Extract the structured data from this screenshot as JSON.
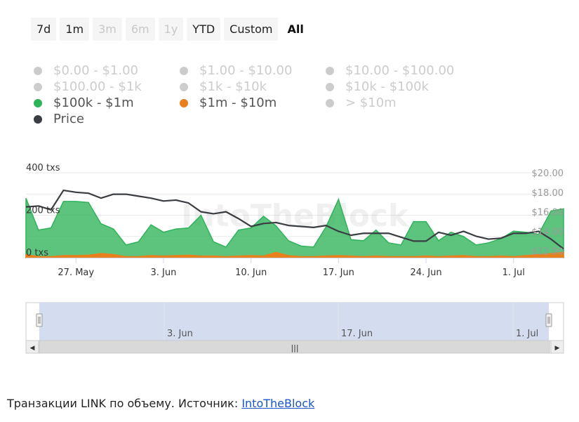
{
  "range_buttons": [
    {
      "label": "7d",
      "state": "enabled"
    },
    {
      "label": "1m",
      "state": "enabled"
    },
    {
      "label": "3m",
      "state": "disabled"
    },
    {
      "label": "6m",
      "state": "disabled"
    },
    {
      "label": "1y",
      "state": "disabled"
    },
    {
      "label": "YTD",
      "state": "enabled"
    },
    {
      "label": "Custom",
      "state": "enabled"
    },
    {
      "label": "All",
      "state": "active"
    }
  ],
  "legend": [
    {
      "label": "$0.00 - $1.00",
      "color": "#cccccc",
      "visible": false
    },
    {
      "label": "$1.00 - $10.00",
      "color": "#cccccc",
      "visible": false
    },
    {
      "label": "$10.00 - $100.00",
      "color": "#cccccc",
      "visible": false
    },
    {
      "label": "$100.00 - $1k",
      "color": "#cccccc",
      "visible": false
    },
    {
      "label": "$1k - $10k",
      "color": "#cccccc",
      "visible": false
    },
    {
      "label": "$10k - $100k",
      "color": "#cccccc",
      "visible": false
    },
    {
      "label": "$100k - $1m",
      "color": "#2fb35a",
      "visible": true
    },
    {
      "label": "$1m - $10m",
      "color": "#e8801e",
      "visible": true
    },
    {
      "label": "> $10m",
      "color": "#cccccc",
      "visible": false
    },
    {
      "label": "Price",
      "color": "#3a3d42",
      "visible": true
    }
  ],
  "chart_data": {
    "type": "area",
    "x_tick_labels": [
      "27. May",
      "3. Jun",
      "10. Jun",
      "17. Jun",
      "24. Jun",
      "1. Jul"
    ],
    "x_range": [
      "May 23",
      "Jul 5"
    ],
    "left_axis": {
      "ticks": [
        "400 txs",
        "200 txs",
        "0 txs"
      ],
      "ylim": [
        0,
        400
      ]
    },
    "right_axis": {
      "ticks": [
        "$12.00",
        "$14.00",
        "$16.00",
        "$18.00",
        "$20.00"
      ],
      "ylim": [
        11.3,
        20
      ]
    },
    "watermark": "IntoTheBlock",
    "x": [
      "May 23",
      "May 24",
      "May 25",
      "May 26",
      "May 27",
      "May 28",
      "May 29",
      "May 30",
      "May 31",
      "Jun 1",
      "Jun 2",
      "Jun 3",
      "Jun 4",
      "Jun 5",
      "Jun 6",
      "Jun 7",
      "Jun 8",
      "Jun 9",
      "Jun 10",
      "Jun 11",
      "Jun 12",
      "Jun 13",
      "Jun 14",
      "Jun 15",
      "Jun 16",
      "Jun 17",
      "Jun 18",
      "Jun 19",
      "Jun 20",
      "Jun 21",
      "Jun 22",
      "Jun 23",
      "Jun 24",
      "Jun 25",
      "Jun 26",
      "Jun 27",
      "Jun 28",
      "Jun 29",
      "Jun 30",
      "Jul 1",
      "Jul 2",
      "Jul 3",
      "Jul 4",
      "Jul 5"
    ],
    "series": [
      {
        "name": "$100k - $1m",
        "kind": "area",
        "axis": "left",
        "color": "#2fb35a",
        "values": [
          280,
          130,
          140,
          265,
          265,
          260,
          160,
          135,
          60,
          75,
          155,
          120,
          135,
          140,
          200,
          75,
          50,
          130,
          140,
          195,
          150,
          80,
          55,
          50,
          145,
          275,
          85,
          80,
          130,
          70,
          60,
          170,
          170,
          80,
          120,
          100,
          60,
          70,
          90,
          125,
          120,
          110,
          220,
          230
        ]
      },
      {
        "name": "$1m - $10m",
        "kind": "area",
        "axis": "left",
        "color": "#e8801e",
        "values": [
          15,
          5,
          5,
          10,
          10,
          12,
          20,
          15,
          5,
          5,
          10,
          8,
          10,
          12,
          8,
          8,
          5,
          8,
          10,
          8,
          25,
          10,
          5,
          5,
          8,
          10,
          8,
          5,
          8,
          5,
          5,
          5,
          8,
          5,
          8,
          10,
          5,
          5,
          8,
          5,
          10,
          15,
          20,
          25
        ]
      },
      {
        "name": "Price",
        "kind": "line",
        "axis": "right",
        "color": "#3a3d42",
        "values": [
          16.5,
          16.6,
          16.2,
          18.2,
          18.0,
          17.9,
          17.4,
          17.8,
          17.8,
          17.6,
          17.4,
          17.1,
          17.2,
          16.9,
          16.0,
          15.8,
          16.0,
          15.3,
          14.5,
          14.8,
          14.9,
          14.6,
          14.5,
          14.4,
          14.6,
          14.0,
          13.6,
          13.8,
          13.8,
          13.8,
          13.4,
          13.0,
          13.0,
          13.9,
          13.6,
          14.0,
          13.5,
          13.2,
          13.3,
          13.8,
          13.8,
          14.0,
          13.2,
          12.2
        ]
      }
    ]
  },
  "navigator": {
    "labels": [
      "3. Jun",
      "17. Jun",
      "1. Jul"
    ],
    "scroll_handle_glyph": "|||",
    "left_arrow": "◀",
    "right_arrow": "▶"
  },
  "caption": {
    "text": "Транзакции LINK по объему. Источник: ",
    "link_text": "IntoTheBlock"
  }
}
